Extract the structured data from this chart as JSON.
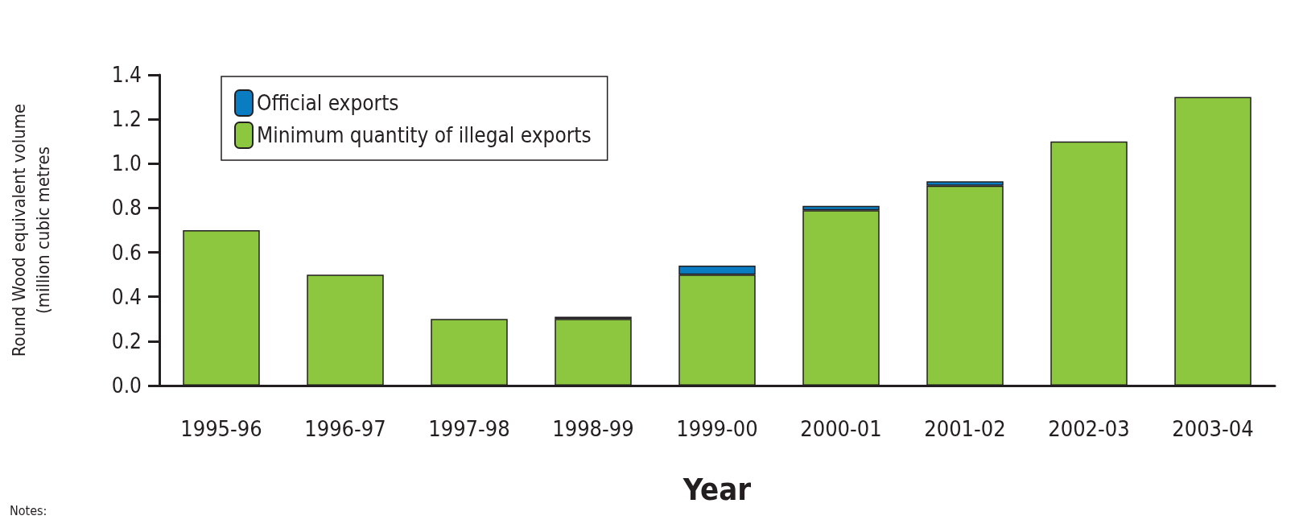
{
  "chart_data": {
    "type": "bar",
    "stacked": true,
    "xlabel": "Year",
    "ylabel": "Round Wood equivalent volume\n(million cubic metres",
    "categories": [
      "1995-96",
      "1996-97",
      "1997-98",
      "1998-99",
      "1999-00",
      "2000-01",
      "2001-02",
      "2002-03",
      "2003-04"
    ],
    "series": [
      {
        "name": "Minimum quantity of illegal exports",
        "color": "#8dc63f",
        "values": [
          0.7,
          0.5,
          0.3,
          0.3,
          0.5,
          0.79,
          0.9,
          1.1,
          1.3
        ]
      },
      {
        "name": "Official exports",
        "color": "#0a7cc1",
        "values": [
          null,
          null,
          null,
          0.01,
          0.04,
          0.02,
          0.02,
          null,
          null
        ]
      }
    ],
    "ylim": [
      0,
      1.4
    ],
    "yticks": [
      {
        "value": 0,
        "label": "0.0"
      },
      {
        "value": 0.2,
        "label": "0.2"
      },
      {
        "value": 0.4,
        "label": "0.4"
      },
      {
        "value": 0.6,
        "label": "0.6"
      },
      {
        "value": 0.8,
        "label": "0.8"
      },
      {
        "value": 1,
        "label": "1.0"
      },
      {
        "value": 1.2,
        "label": "1.2"
      },
      {
        "value": 1.4,
        "label": "1.4"
      }
    ],
    "legend": "top left",
    "grid": false,
    "annotations": [
      "Notes:"
    ]
  }
}
